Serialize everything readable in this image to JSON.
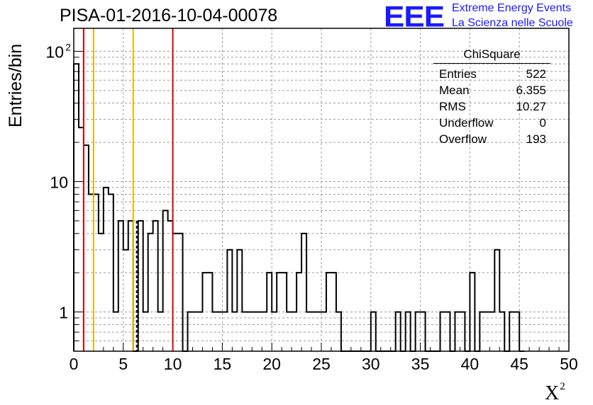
{
  "title": "PISA-01-2016-10-04-00078",
  "logo": {
    "mark": "EEE",
    "line1": "Extreme Energy Events",
    "line2": "La Scienza nelle Scuole"
  },
  "stats_box": {
    "title": "ChiSquare",
    "rows": [
      {
        "label": "Entries",
        "value": "522"
      },
      {
        "label": "Mean",
        "value": "6.355"
      },
      {
        "label": "RMS",
        "value": "10.27"
      },
      {
        "label": "Underflow",
        "value": "0"
      },
      {
        "label": "Overflow",
        "value": "193"
      }
    ]
  },
  "chart_data": {
    "type": "histogram",
    "title": "PISA-01-2016-10-04-00078",
    "xlabel": "X",
    "xlabel_sup": "2",
    "ylabel": "Entries/bin",
    "xlim": [
      0,
      50
    ],
    "ylim": [
      0.5,
      150
    ],
    "yscale": "log",
    "grid": true,
    "bin_width": 0.5,
    "x_ticks": [
      "0",
      "5",
      "10",
      "15",
      "20",
      "25",
      "30",
      "35",
      "40",
      "45",
      "50"
    ],
    "y_ticks": [
      {
        "value": 1,
        "label": "1"
      },
      {
        "value": 10,
        "label": "10"
      },
      {
        "value": 100,
        "label": "10",
        "sup": "2"
      }
    ],
    "bins": [
      [
        0,
        80
      ],
      [
        0.5,
        26
      ],
      [
        1,
        19
      ],
      [
        1.5,
        8
      ],
      [
        2,
        8
      ],
      [
        2.5,
        4
      ],
      [
        3,
        9
      ],
      [
        3.5,
        8
      ],
      [
        4,
        1
      ],
      [
        4.5,
        5
      ],
      [
        5,
        3
      ],
      [
        5.5,
        5
      ],
      [
        6,
        0.1
      ],
      [
        6.5,
        5
      ],
      [
        7,
        1
      ],
      [
        7.5,
        4
      ],
      [
        8,
        5
      ],
      [
        8.5,
        1
      ],
      [
        9,
        6
      ],
      [
        9.5,
        5
      ],
      [
        10,
        4
      ],
      [
        10.5,
        4
      ],
      [
        11,
        0.1
      ],
      [
        11.5,
        1
      ],
      [
        12,
        1
      ],
      [
        12.5,
        1
      ],
      [
        13,
        2
      ],
      [
        13.5,
        2
      ],
      [
        14,
        1
      ],
      [
        14.5,
        1
      ],
      [
        15,
        1
      ],
      [
        15.5,
        3
      ],
      [
        16,
        1
      ],
      [
        16.5,
        3
      ],
      [
        17,
        1
      ],
      [
        17.5,
        1
      ],
      [
        18,
        1
      ],
      [
        18.5,
        1
      ],
      [
        19,
        1
      ],
      [
        19.5,
        2
      ],
      [
        20,
        1
      ],
      [
        20.5,
        2
      ],
      [
        21,
        2
      ],
      [
        21.5,
        1
      ],
      [
        22,
        1
      ],
      [
        22.5,
        2
      ],
      [
        23,
        4
      ],
      [
        23.5,
        1
      ],
      [
        24,
        1
      ],
      [
        24.5,
        1
      ],
      [
        25,
        1
      ],
      [
        25.5,
        2
      ],
      [
        26,
        2
      ],
      [
        26.5,
        1
      ],
      [
        27,
        0.1
      ],
      [
        27.5,
        0.1
      ],
      [
        28,
        0.1
      ],
      [
        28.5,
        0.1
      ],
      [
        29,
        0.1
      ],
      [
        29.5,
        0.1
      ],
      [
        30,
        1
      ],
      [
        30.5,
        0.1
      ],
      [
        31,
        0.1
      ],
      [
        31.5,
        0.1
      ],
      [
        32,
        0.1
      ],
      [
        32.5,
        1
      ],
      [
        33,
        0.1
      ],
      [
        33.5,
        1
      ],
      [
        34,
        0.1
      ],
      [
        34.5,
        1
      ],
      [
        35,
        1
      ],
      [
        35.5,
        0.1
      ],
      [
        36,
        0.1
      ],
      [
        36.5,
        0.1
      ],
      [
        37,
        1
      ],
      [
        37.5,
        1
      ],
      [
        38,
        0.1
      ],
      [
        38.5,
        1
      ],
      [
        39,
        1
      ],
      [
        39.5,
        0.1
      ],
      [
        40,
        2
      ],
      [
        40.5,
        0.1
      ],
      [
        41,
        1
      ],
      [
        41.5,
        1
      ],
      [
        42,
        1
      ],
      [
        42.5,
        3
      ],
      [
        43,
        1
      ],
      [
        43.5,
        0.1
      ],
      [
        44,
        1
      ],
      [
        44.5,
        1
      ],
      [
        45,
        0.1
      ]
    ],
    "markers": [
      {
        "x": 1.0,
        "color": "#dd0000",
        "style": "solid"
      },
      {
        "x": 2.0,
        "color": "#e6b800",
        "style": "solid"
      },
      {
        "x": 6.0,
        "color": "#e6b800",
        "style": "solid"
      },
      {
        "x": 6.355,
        "color": "#000000",
        "style": "dashed"
      },
      {
        "x": 10.0,
        "color": "#dd0000",
        "style": "solid"
      }
    ]
  }
}
